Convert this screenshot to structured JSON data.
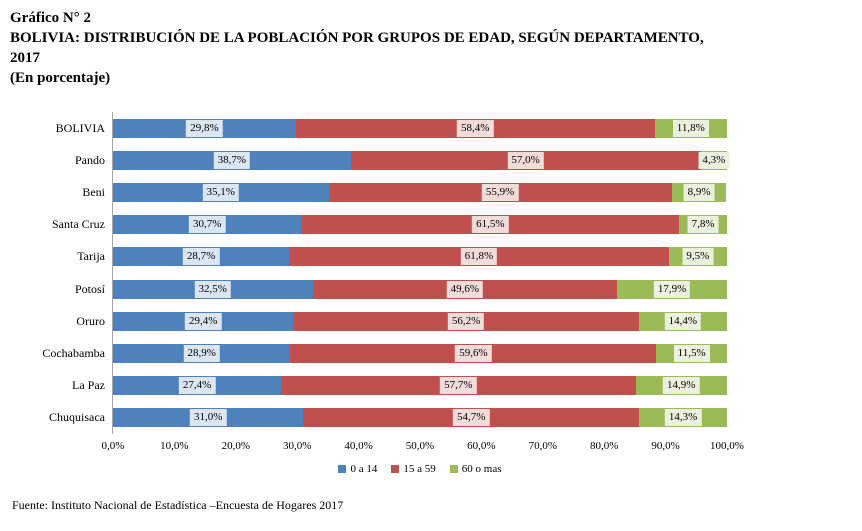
{
  "header": {
    "line1": "Gráfico N° 2",
    "line2": "BOLIVIA: DISTRIBUCIÓN DE LA POBLACIÓN POR GRUPOS DE EDAD, SEGÚN DEPARTAMENTO,",
    "line3": "2017",
    "line4": "(En porcentaje)"
  },
  "chart_data": {
    "type": "bar",
    "orientation": "horizontal",
    "stacked": true,
    "grid": false,
    "categories": [
      "BOLIVIA",
      "Pando",
      "Beni",
      "Santa Cruz",
      "Tarija",
      "Potosí",
      "Oruro",
      "Cochabamba",
      "La Paz",
      "Chuquisaca"
    ],
    "series": [
      {
        "name": "0 a 14",
        "color": "#4F81BD",
        "label_bg": "#DCE6F2",
        "values": [
          29.8,
          38.7,
          35.1,
          30.7,
          28.7,
          32.5,
          29.4,
          28.9,
          27.4,
          31.0
        ],
        "labels": [
          "29,8%",
          "38,7%",
          "35,1%",
          "30,7%",
          "28,7%",
          "32,5%",
          "29,4%",
          "28,9%",
          "27,4%",
          "31,0%"
        ]
      },
      {
        "name": "15 a 59",
        "color": "#C0504D",
        "label_bg": "#F2DCDB",
        "values": [
          58.4,
          57.0,
          55.9,
          61.5,
          61.8,
          49.6,
          56.2,
          59.6,
          57.7,
          54.7
        ],
        "labels": [
          "58,4%",
          "57,0%",
          "55,9%",
          "61,5%",
          "61,8%",
          "49,6%",
          "56,2%",
          "59,6%",
          "57,7%",
          "54,7%"
        ]
      },
      {
        "name": "60 o mas",
        "color": "#9BBB59",
        "label_bg": "#EBF1DE",
        "values": [
          11.8,
          4.3,
          8.9,
          7.8,
          9.5,
          17.9,
          14.4,
          11.5,
          14.9,
          14.3
        ],
        "labels": [
          "11,8%",
          "4,3%",
          "8,9%",
          "7,8%",
          "9,5%",
          "17,9%",
          "14,4%",
          "11,5%",
          "14,9%",
          "14,3%"
        ]
      }
    ],
    "x_axis": {
      "min": 0,
      "max": 100,
      "ticks": [
        "0,0%",
        "10,0%",
        "20,0%",
        "30,0%",
        "40,0%",
        "50,0%",
        "60,0%",
        "70,0%",
        "80,0%",
        "90,0%",
        "100,0%"
      ]
    },
    "legend": [
      "0 a 14",
      "15 a 59",
      "60 o mas"
    ],
    "legend_position": "bottom"
  },
  "footer": {
    "source": "Fuente: Instituto Nacional de Estadística –Encuesta de Hogares 2017"
  }
}
